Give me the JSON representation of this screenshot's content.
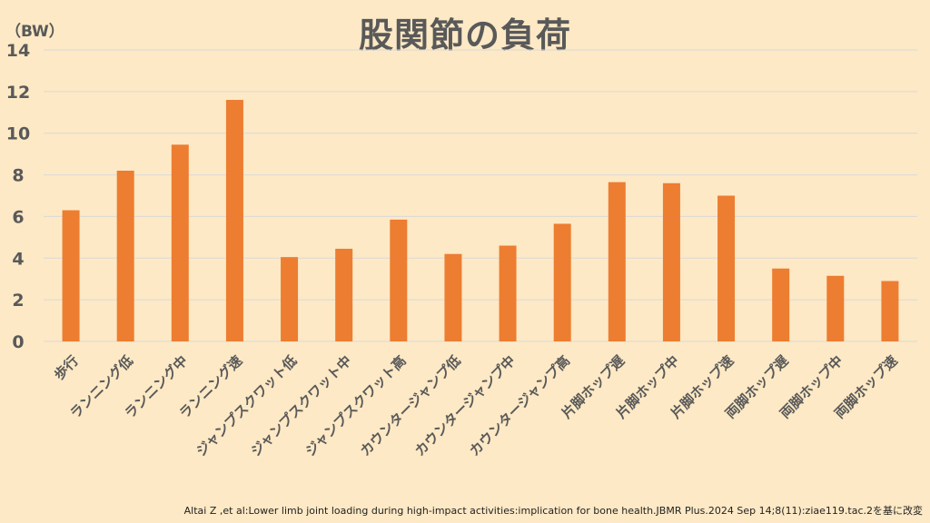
{
  "chart_data": {
    "type": "bar",
    "title": "股関節の負荷",
    "ylabel": "（BW）",
    "ylim": [
      0,
      14
    ],
    "yticks": [
      0,
      2,
      4,
      6,
      8,
      10,
      12,
      14
    ],
    "grid": true,
    "categories": [
      "歩行",
      "ランニング低",
      "ランニング中",
      "ランニング速",
      "ジャンプスクワット低",
      "ジャンプスクワット中",
      "ジャンプスクワット高",
      "カウンタージャンプ低",
      "カウンタージャンプ中",
      "カウンタージャンプ高",
      "片脚ホップ遅",
      "片脚ホップ中",
      "片脚ホップ速",
      "両脚ホップ遅",
      "両脚ホップ中",
      "両脚ホップ速"
    ],
    "values": [
      6.3,
      8.2,
      9.45,
      11.6,
      4.05,
      4.45,
      5.85,
      4.2,
      4.6,
      5.65,
      7.65,
      7.6,
      7.0,
      3.5,
      3.15,
      2.9
    ],
    "bar_color": "#ed7d31"
  },
  "source": "Altai Z ,et al:Lower limb joint loading during high-impact activities:implication for bone health.JBMR Plus.2024 Sep 14;8(11):ziae119.tac.2を基に改変",
  "colors": {
    "background": "#fde9c5",
    "bar": "#ed7d31",
    "text": "#595959",
    "grid": "#d9d9d9"
  }
}
